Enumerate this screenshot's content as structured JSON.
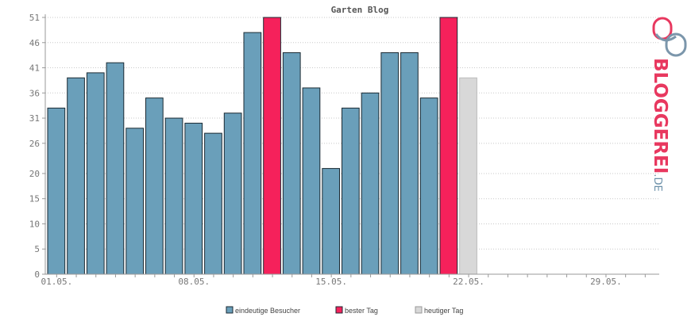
{
  "chart_data": {
    "type": "bar",
    "title": "Garten Blog",
    "xlabel": "",
    "ylabel": "",
    "ylim": [
      0,
      51
    ],
    "yticks": [
      0,
      5,
      10,
      15,
      20,
      26,
      31,
      36,
      41,
      46,
      51
    ],
    "xtick_labels": [
      {
        "day": 1,
        "label": "01.05."
      },
      {
        "day": 8,
        "label": "08.05."
      },
      {
        "day": 15,
        "label": "15.05."
      },
      {
        "day": 22,
        "label": "22.05."
      },
      {
        "day": 29,
        "label": "29.05."
      }
    ],
    "days_in_range": 31,
    "grid": true,
    "legend_position": "bottom-center",
    "series": [
      {
        "key": "visitors",
        "name": "eindeutige Besucher",
        "color": "#6a9fba"
      },
      {
        "key": "best",
        "name": "bester Tag",
        "color": "#f5215b"
      },
      {
        "key": "today",
        "name": "heutiger Tag",
        "color": "#d8d8d8"
      }
    ],
    "bars": [
      {
        "day": 1,
        "value": 33,
        "series": "visitors"
      },
      {
        "day": 2,
        "value": 39,
        "series": "visitors"
      },
      {
        "day": 3,
        "value": 40,
        "series": "visitors"
      },
      {
        "day": 4,
        "value": 42,
        "series": "visitors"
      },
      {
        "day": 5,
        "value": 29,
        "series": "visitors"
      },
      {
        "day": 6,
        "value": 35,
        "series": "visitors"
      },
      {
        "day": 7,
        "value": 31,
        "series": "visitors"
      },
      {
        "day": 8,
        "value": 30,
        "series": "visitors"
      },
      {
        "day": 9,
        "value": 28,
        "series": "visitors"
      },
      {
        "day": 10,
        "value": 32,
        "series": "visitors"
      },
      {
        "day": 11,
        "value": 48,
        "series": "visitors"
      },
      {
        "day": 12,
        "value": 51,
        "series": "best"
      },
      {
        "day": 13,
        "value": 44,
        "series": "visitors"
      },
      {
        "day": 14,
        "value": 37,
        "series": "visitors"
      },
      {
        "day": 15,
        "value": 21,
        "series": "visitors"
      },
      {
        "day": 16,
        "value": 33,
        "series": "visitors"
      },
      {
        "day": 17,
        "value": 36,
        "series": "visitors"
      },
      {
        "day": 18,
        "value": 44,
        "series": "visitors"
      },
      {
        "day": 19,
        "value": 44,
        "series": "visitors"
      },
      {
        "day": 20,
        "value": 35,
        "series": "visitors"
      },
      {
        "day": 21,
        "value": 51,
        "series": "best"
      },
      {
        "day": 22,
        "value": 39,
        "series": "today"
      }
    ]
  },
  "branding": {
    "logo_main": "BLOGGEREI",
    "logo_suffix": ".DE",
    "logo_color_main": "#e8385f",
    "logo_color_accent": "#6a8fa8"
  }
}
